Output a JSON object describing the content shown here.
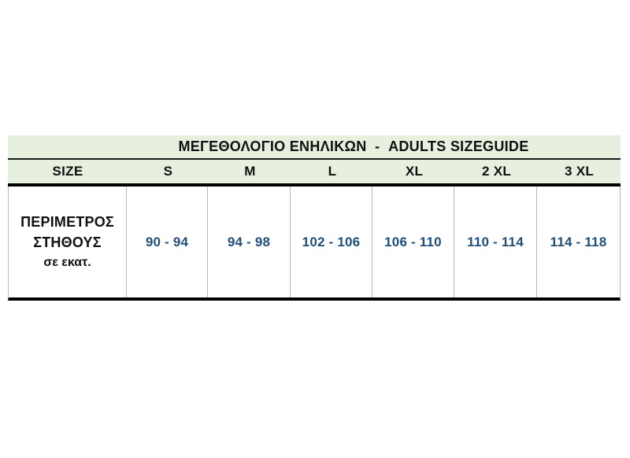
{
  "table": {
    "title": "ΜΕΓΕΘΟΛΟΓΙΟ ΕΝΗΛΙΚΩΝ  -  ADULTS SIZEGUIDE",
    "columns": [
      "SIZE",
      "S",
      "M",
      "L",
      "XL",
      "2 XL",
      "3 XL"
    ],
    "row_label": {
      "line1": "ΠΕΡΙΜΕΤΡΟΣ",
      "line2": "ΣΤΗΘΟΥΣ",
      "line3": "σε εκατ."
    },
    "values": [
      "90 - 94",
      "94 - 98",
      "102 - 106",
      "106 - 110",
      "110 - 114",
      "114 - 118"
    ],
    "colors": {
      "band_background": "#e7efde",
      "value_text": "#1f4e79",
      "heading_text": "#111111",
      "thick_rule": "#000000",
      "thin_rule": "#b7b7b7"
    }
  }
}
